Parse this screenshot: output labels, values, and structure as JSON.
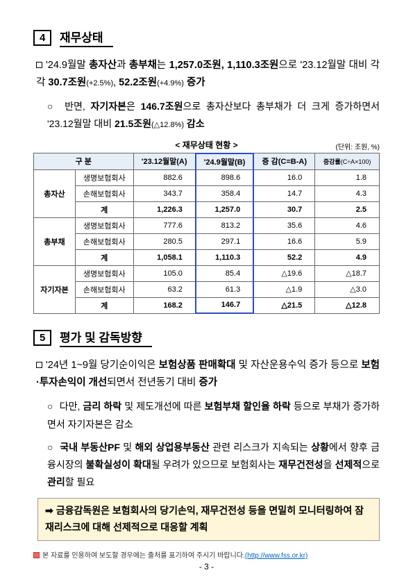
{
  "section4": {
    "number": "4",
    "title": "재무상태",
    "p1_full": "'24.9월말 총자산과 총부채는 1,257.0조원, 1,110.3조원으로 '23.12월말 대비 각각 30.7조원(+2.5%), 52.2조원(+4.9%) 증가",
    "p2_full": "반면, 자기자본은 146.7조원으로 총자산보다 총부채가 더 크게 증가하면서 '23.12월말 대비 21.5조원(△12.8%) 감소",
    "table": {
      "caption": "< 재무상태 현황 >",
      "unit": "(단위: 조원, %)",
      "headers": [
        "구  분",
        "'23.12월말(A)",
        "'24.9월말(B)",
        "증  감(C=B-A)",
        "증감률(C÷A×100)"
      ],
      "groups": [
        {
          "label": "총자산",
          "rows": [
            {
              "name": "생명보험회사",
              "a": "882.6",
              "b": "898.6",
              "c": "16.0",
              "d": "1.8"
            },
            {
              "name": "손해보험회사",
              "a": "343.7",
              "b": "358.4",
              "c": "14.7",
              "d": "4.3"
            },
            {
              "name": "계",
              "a": "1,226.3",
              "b": "1,257.0",
              "c": "30.7",
              "d": "2.5",
              "sum": true
            }
          ]
        },
        {
          "label": "총부채",
          "rows": [
            {
              "name": "생명보험회사",
              "a": "777.6",
              "b": "813.2",
              "c": "35.6",
              "d": "4.6"
            },
            {
              "name": "손해보험회사",
              "a": "280.5",
              "b": "297.1",
              "c": "16.6",
              "d": "5.9"
            },
            {
              "name": "계",
              "a": "1,058.1",
              "b": "1,110.3",
              "c": "52.2",
              "d": "4.9",
              "sum": true
            }
          ]
        },
        {
          "label": "자기자본",
          "rows": [
            {
              "name": "생명보험회사",
              "a": "105.0",
              "b": "85.4",
              "c": "△19.6",
              "d": "△18.7"
            },
            {
              "name": "손해보험회사",
              "a": "63.2",
              "b": "61.3",
              "c": "△1.9",
              "d": "△3.0"
            },
            {
              "name": "계",
              "a": "168.2",
              "b": "146.7",
              "c": "△21.5",
              "d": "△12.8",
              "sum": true
            }
          ]
        }
      ]
    }
  },
  "section5": {
    "number": "5",
    "title": "평가 및 감독방향",
    "p1": "'24년 1~9월 당기순이익은 보험상품 판매확대 및 자산운용수익 증가 등으로 보험·투자손익이 개선되면서 전년동기 대비 증가",
    "p2": "다만, 금리 하락 및 제도개선에 따른 보험부채 할인율 하락 등으로 부채가 증가하면서 자기자본은 감소",
    "p3": "국내 부동산PF 및 해외 상업용부동산 관련 리스크가 지속되는 상황에서 향후 금융시장의 불확실성이 확대될 우려가 있으므로 보험회사는 재무건전성을 선제적으로 관리할 필요",
    "arrow": "금융감독원은 보험회사의 당기손익, 재무건전성 등을 면밀히 모니터링하여 잠재리스크에 대해 선제적으로 대응할 계획"
  },
  "footnote_text": "본 자료를 인용하여 보도할 경우에는 출처를 표기하여 주시기 바랍니다.",
  "footnote_link": "(http://www.fss.or.kr)",
  "pagenum": "- 3 -"
}
